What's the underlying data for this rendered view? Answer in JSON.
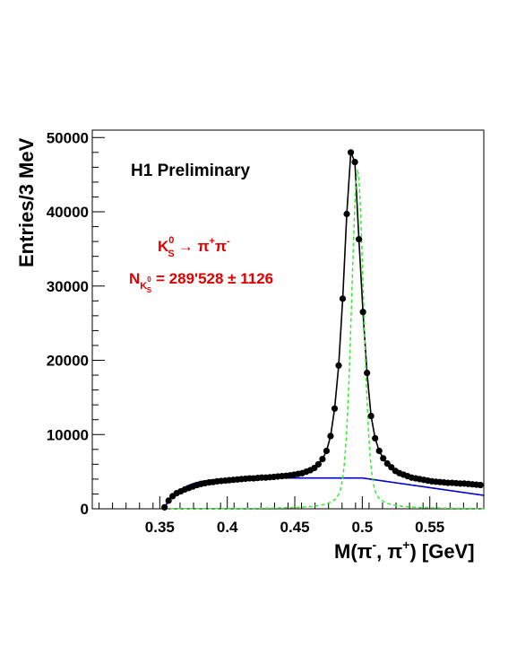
{
  "chart_data": {
    "type": "scatter",
    "ylabel": "Entries/3 MeV",
    "xlabel_parts": {
      "a": "M(π",
      "b": "-",
      "c": ", π",
      "d": "+",
      "e": ") [GeV]"
    },
    "xlim": [
      0.3,
      0.59
    ],
    "ylim": [
      0,
      51000
    ],
    "x_ticks": [
      "0.35",
      "0.4",
      "0.45",
      "0.5",
      "0.55"
    ],
    "x_tick_values": [
      0.35,
      0.4,
      0.45,
      0.5,
      0.55
    ],
    "y_ticks": [
      "0",
      "10000",
      "20000",
      "30000",
      "40000",
      "50000"
    ],
    "y_tick_values": [
      0,
      10000,
      20000,
      30000,
      40000,
      50000
    ],
    "annotations": {
      "preliminary": "H1 Preliminary",
      "decay": {
        "k": "K",
        "k_sup": "0",
        "k_sub": "S",
        "arrow": "→ π",
        "pi_plus": "+",
        "pi": "π",
        "pi_minus": "-"
      },
      "count": {
        "n": "N",
        "n_sub_k": "K",
        "n_sub_k_sup": "0",
        "n_sub_k_sub": "S",
        "value": "= 289'528 ± 1126"
      }
    },
    "series": [
      {
        "kind": "data",
        "x": [
          0.3535,
          0.3565,
          0.3595,
          0.3625,
          0.3655,
          0.3685,
          0.3715,
          0.3745,
          0.3775,
          0.3805,
          0.3835,
          0.3865,
          0.3895,
          0.3925,
          0.3955,
          0.3985,
          0.4015,
          0.4045,
          0.4075,
          0.4105,
          0.4135,
          0.4165,
          0.4195,
          0.4225,
          0.4255,
          0.4285,
          0.4315,
          0.4345,
          0.4375,
          0.4405,
          0.4435,
          0.4465,
          0.4495,
          0.4525,
          0.4555,
          0.4585,
          0.4615,
          0.4645,
          0.4675,
          0.4705,
          0.4735,
          0.4765,
          0.4795,
          0.4825,
          0.4855,
          0.4885,
          0.4915,
          0.4945,
          0.4975,
          0.5005,
          0.5035,
          0.5065,
          0.5095,
          0.5125,
          0.5155,
          0.5185,
          0.5215,
          0.5245,
          0.5275,
          0.5305,
          0.5335,
          0.5365,
          0.5395,
          0.5425,
          0.5455,
          0.5485,
          0.5515,
          0.5545,
          0.5575,
          0.5605,
          0.5635,
          0.5665,
          0.5695,
          0.5725,
          0.5755,
          0.5785,
          0.5815,
          0.5845,
          0.5875
        ],
        "y": [
          200,
          1100,
          1700,
          2100,
          2350,
          2600,
          2800,
          3000,
          3200,
          3350,
          3450,
          3550,
          3600,
          3700,
          3750,
          3800,
          3850,
          3900,
          3950,
          4000,
          4050,
          4100,
          4100,
          4150,
          4200,
          4200,
          4250,
          4300,
          4350,
          4400,
          4450,
          4500,
          4600,
          4700,
          4800,
          5000,
          5200,
          5500,
          6000,
          6700,
          7800,
          9800,
          13500,
          19300,
          28300,
          39700,
          48000,
          46700,
          36300,
          26500,
          18300,
          12500,
          9500,
          7800,
          6800,
          6100,
          5600,
          5100,
          4800,
          4600,
          4400,
          4200,
          4100,
          4000,
          3900,
          3800,
          3700,
          3650,
          3600,
          3550,
          3500,
          3500,
          3450,
          3400,
          3400,
          3350,
          3300,
          3250,
          3200
        ]
      },
      {
        "kind": "total-fit",
        "color": "#000000"
      },
      {
        "kind": "background-fit",
        "color": "#0000cc"
      },
      {
        "kind": "signal-fit",
        "color": "#33ee33"
      }
    ]
  }
}
